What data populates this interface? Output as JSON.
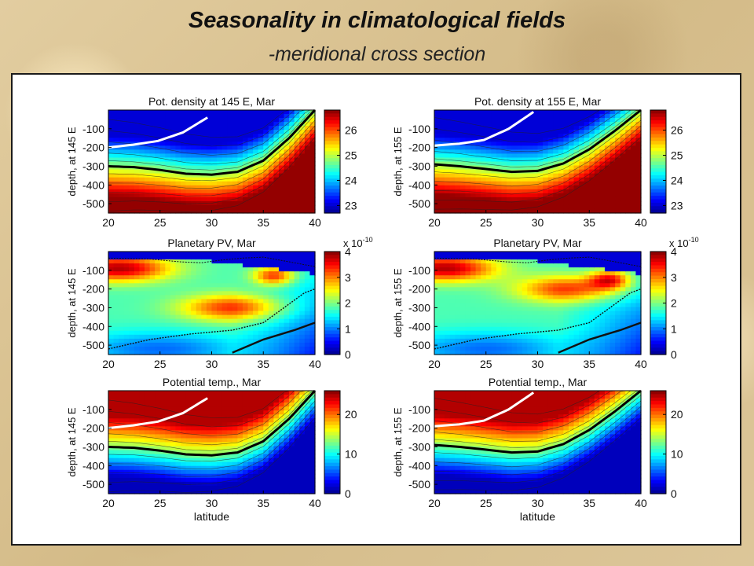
{
  "page": {
    "title": "Seasonality in climatological fields",
    "subtitle": "-meridional cross section"
  },
  "colormap": [
    "#00008f",
    "#0000ff",
    "#0080ff",
    "#00ffff",
    "#80ff80",
    "#ffff00",
    "#ff8000",
    "#ff0000",
    "#800000"
  ],
  "chart_data": [
    {
      "type": "heatmap",
      "field": "density",
      "title": "Pot. density at 145 E, Mar",
      "xlabel": "",
      "ylabel": "depth, at 145 E",
      "xticks": [
        20,
        25,
        30,
        35,
        40
      ],
      "yticks": [
        -100,
        -200,
        -300,
        -400,
        -500
      ],
      "xlim": [
        20,
        40
      ],
      "ylim": [
        -550,
        0
      ],
      "colorbar": {
        "min": 22.7,
        "max": 26.8,
        "ticks": [
          26,
          25,
          24,
          23
        ],
        "exponent": ""
      },
      "thick_contour_depth": [
        -300,
        -305,
        -320,
        -340,
        -345,
        -330,
        -270,
        -150,
        0
      ],
      "white_contour_depth": [
        -200,
        -185,
        -165,
        -120,
        -40
      ]
    },
    {
      "type": "heatmap",
      "field": "density",
      "title": "Pot. density at 155 E, Mar",
      "xlabel": "",
      "ylabel": "depth, at 155 E",
      "xticks": [
        20,
        25,
        30,
        35,
        40
      ],
      "yticks": [
        -100,
        -200,
        -300,
        -400,
        -500
      ],
      "xlim": [
        20,
        40
      ],
      "ylim": [
        -550,
        0
      ],
      "colorbar": {
        "min": 22.7,
        "max": 26.8,
        "ticks": [
          26,
          25,
          24,
          23
        ],
        "exponent": ""
      },
      "thick_contour_depth": [
        -290,
        -300,
        -315,
        -330,
        -325,
        -285,
        -210,
        -110,
        0
      ],
      "white_contour_depth": [
        -190,
        -180,
        -160,
        -100,
        -10
      ]
    },
    {
      "type": "heatmap",
      "field": "pv",
      "title": "Planetary PV, Mar",
      "xlabel": "",
      "ylabel": "depth, at 145 E",
      "xticks": [
        20,
        25,
        30,
        35,
        40
      ],
      "yticks": [
        -100,
        -200,
        -300,
        -400,
        -500
      ],
      "xlim": [
        20,
        40
      ],
      "ylim": [
        -550,
        0
      ],
      "colorbar": {
        "min": 0,
        "max": 4,
        "ticks": [
          4,
          3,
          2,
          1,
          0
        ],
        "exponent": "x 10^-10"
      },
      "high_pv_core": {
        "lat": 32,
        "depth": -300
      },
      "secondary_core": {
        "lat": 36,
        "depth": -130
      }
    },
    {
      "type": "heatmap",
      "field": "pv",
      "title": "Planetary PV, Mar",
      "xlabel": "",
      "ylabel": "depth, at 155 E",
      "xticks": [
        20,
        25,
        30,
        35,
        40
      ],
      "yticks": [
        -100,
        -200,
        -300,
        -400,
        -500
      ],
      "xlim": [
        20,
        40
      ],
      "ylim": [
        -550,
        0
      ],
      "colorbar": {
        "min": 0,
        "max": 4,
        "ticks": [
          4,
          3,
          2,
          1,
          0
        ],
        "exponent": "x 10^-10"
      },
      "high_pv_core": {
        "lat": 33,
        "depth": -200
      },
      "secondary_core": {
        "lat": 37,
        "depth": -150
      }
    },
    {
      "type": "heatmap",
      "field": "temp",
      "title": "Potential temp., Mar",
      "xlabel": "latitude",
      "ylabel": "depth, at 145 E",
      "xticks": [
        20,
        25,
        30,
        35,
        40
      ],
      "yticks": [
        -100,
        -200,
        -300,
        -400,
        -500
      ],
      "xlim": [
        20,
        40
      ],
      "ylim": [
        -550,
        0
      ],
      "colorbar": {
        "min": 0,
        "max": 26,
        "ticks": [
          20,
          10,
          0
        ],
        "exponent": ""
      },
      "thick_contour_depth": [
        -300,
        -305,
        -320,
        -340,
        -345,
        -330,
        -270,
        -150,
        0
      ],
      "white_contour_depth": [
        -200,
        -185,
        -165,
        -120,
        -40
      ]
    },
    {
      "type": "heatmap",
      "field": "temp",
      "title": "Potential temp., Mar",
      "xlabel": "latitude",
      "ylabel": "depth, at 155 E",
      "xticks": [
        20,
        25,
        30,
        35,
        40
      ],
      "yticks": [
        -100,
        -200,
        -300,
        -400,
        -500
      ],
      "xlim": [
        20,
        40
      ],
      "ylim": [
        -550,
        0
      ],
      "colorbar": {
        "min": 0,
        "max": 26,
        "ticks": [
          20,
          10,
          0
        ],
        "exponent": ""
      },
      "thick_contour_depth": [
        -290,
        -300,
        -315,
        -330,
        -325,
        -285,
        -210,
        -110,
        0
      ],
      "white_contour_depth": [
        -190,
        -180,
        -160,
        -100,
        -10
      ]
    }
  ]
}
